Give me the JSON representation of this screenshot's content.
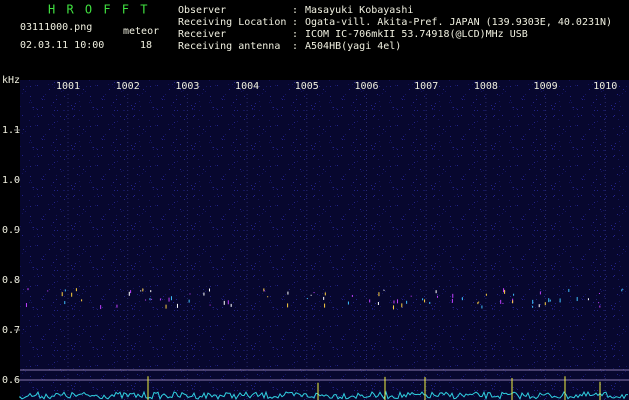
{
  "header": {
    "program": "H R O F F T",
    "file": "03111000.png",
    "datetime": "02.03.11 10:00",
    "meteor_label": "meteor",
    "meteor_count": 18,
    "info": [
      {
        "label": "Observer",
        "value": "Masayuki Kobayashi"
      },
      {
        "label": "Receiving Location",
        "value": "Ogata-vill. Akita-Pref. JAPAN (139.9303E, 40.0231N)"
      },
      {
        "label": "Receiver",
        "value": "ICOM IC-706mkII 53.74918(@LCD)MHz USB"
      },
      {
        "label": "Receiving antenna",
        "value": "A504HB(yagi 4el)"
      }
    ]
  },
  "axis": {
    "y_unit": "kHz",
    "yticks": [
      {
        "value": 0.6,
        "label": "0.6"
      },
      {
        "value": 0.7,
        "label": "0.7"
      },
      {
        "value": 0.8,
        "label": "0.8"
      },
      {
        "value": 0.9,
        "label": "0.9"
      },
      {
        "value": 1.0,
        "label": "1.0"
      },
      {
        "value": 1.1,
        "label": "1.1"
      }
    ],
    "xticks": [
      1001,
      1002,
      1003,
      1004,
      1005,
      1006,
      1007,
      1008,
      1009,
      1010
    ]
  }
}
